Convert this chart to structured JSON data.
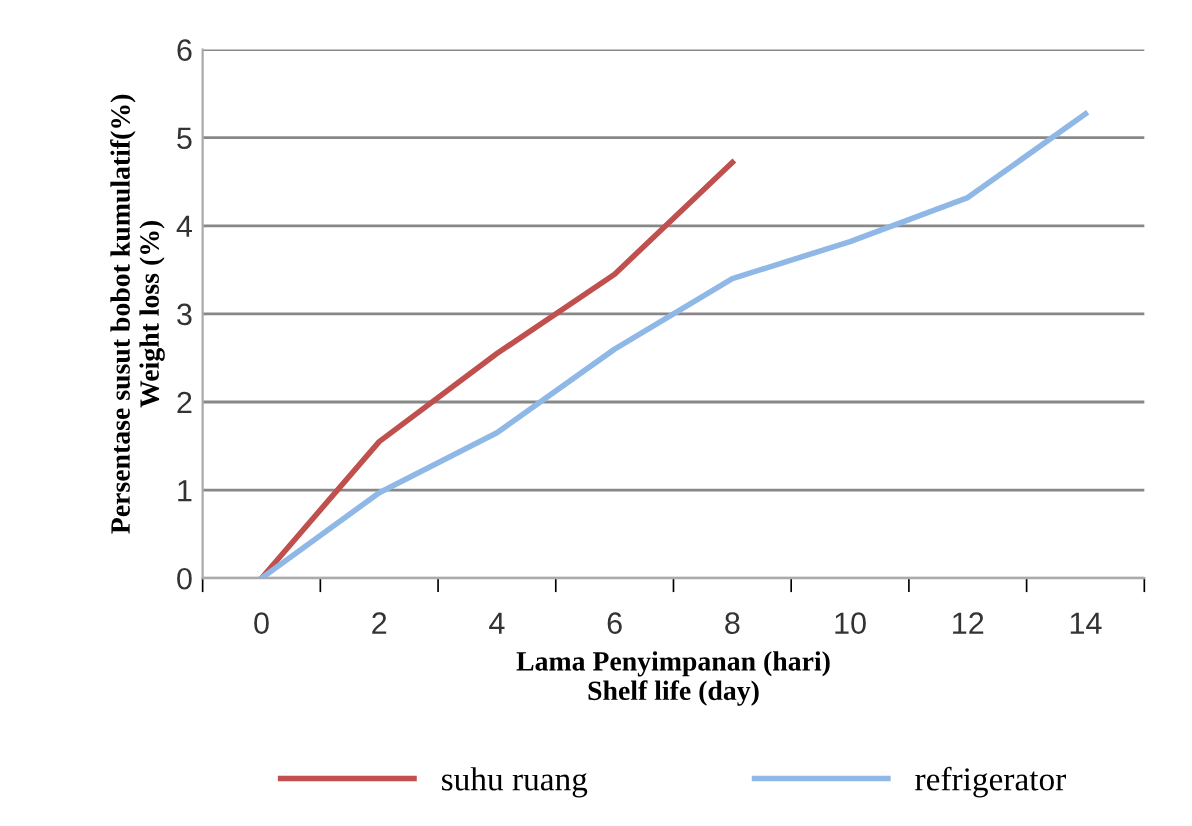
{
  "chart_data": {
    "type": "line",
    "xlabel": "Lama Penyimpanan (hari)\nShelf life (day)",
    "ylabel": "Persentase susut bobot kumulatif(%)\nWeight loss (%)",
    "categories": [
      "0",
      "2",
      "4",
      "6",
      "8",
      "10",
      "12",
      "14"
    ],
    "series": [
      {
        "name": "suhu ruang",
        "color": "#c0504d",
        "values": [
          0,
          1.55,
          2.55,
          3.45,
          4.72,
          null,
          null,
          null
        ]
      },
      {
        "name": "refrigerator",
        "color": "#8fb8e6",
        "values": [
          0,
          0.97,
          1.65,
          2.6,
          3.4,
          3.82,
          4.32,
          5.27
        ]
      }
    ],
    "ylim": [
      0,
      6
    ],
    "yticks": [
      0,
      1,
      2,
      3,
      4,
      5,
      6
    ],
    "grid": "y",
    "legend": "bottom",
    "marker": "none",
    "line_style": "solid"
  }
}
